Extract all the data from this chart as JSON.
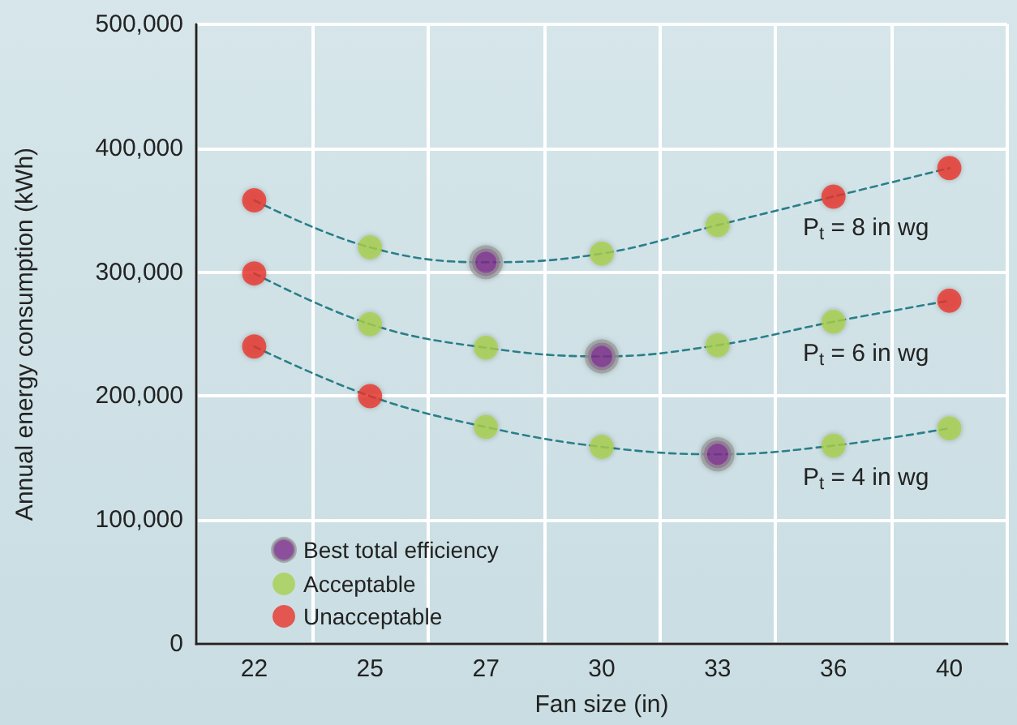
{
  "chart_data": {
    "type": "line",
    "xlabel": "Fan size (in)",
    "ylabel": "Annual energy consumption (kWh)",
    "categories": [
      "22",
      "25",
      "27",
      "30",
      "33",
      "36",
      "40"
    ],
    "series": [
      {
        "name": "P$_{t}$ = 8 in wg",
        "color": "#2a7f8a",
        "line_style": "dashed",
        "marker": "none",
        "values": [
          358000,
          320000,
          308000,
          315000,
          338000,
          361000,
          384000
        ]
      },
      {
        "name": "P$_{t}$ = 6 in wg",
        "color": "#2a7f8a",
        "line_style": "dashed",
        "marker": "none",
        "values": [
          299000,
          258000,
          239000,
          232000,
          241000,
          260000,
          277000
        ]
      },
      {
        "name": "P$_{t}$ = 4 in wg",
        "color": "#2a7f8a",
        "line_style": "dashed",
        "marker": "none",
        "values": [
          240000,
          200000,
          175000,
          159000,
          153000,
          160000,
          174000
        ]
      },
      {
        "name": "Best total efficiency",
        "type": "scatter",
        "color": "#7b2a8a",
        "marker": "circle",
        "x": [
          "27",
          "30",
          "33"
        ],
        "values": [
          308000,
          232000,
          153000
        ]
      },
      {
        "name": "Acceptable",
        "type": "scatter",
        "color": "#a8cf4d",
        "marker": "circle",
        "x": [
          "25",
          "30",
          "33",
          "25",
          "27",
          "33",
          "36",
          "27",
          "30",
          "36",
          "40"
        ],
        "values": [
          320000,
          315000,
          338000,
          258000,
          239000,
          241000,
          260000,
          175000,
          159000,
          160000,
          174000
        ]
      },
      {
        "name": "Unacceptable",
        "type": "scatter",
        "color": "#e8352a",
        "marker": "circle",
        "x": [
          "22",
          "36",
          "40",
          "22",
          "40",
          "22",
          "25"
        ],
        "values": [
          358000,
          361000,
          384000,
          299000,
          277000,
          240000,
          200000
        ]
      }
    ],
    "ylim": [
      0,
      500000
    ],
    "yticks": [
      {
        "value": 0,
        "label": "0"
      },
      {
        "value": 100000,
        "label": "100,000"
      },
      {
        "value": 200000,
        "label": "200,000"
      },
      {
        "value": 300000,
        "label": "300,000"
      },
      {
        "value": 400000,
        "label": "400,000"
      },
      {
        "value": 500000,
        "label": "500,000"
      }
    ],
    "grid": true,
    "legend": "bottom left"
  }
}
